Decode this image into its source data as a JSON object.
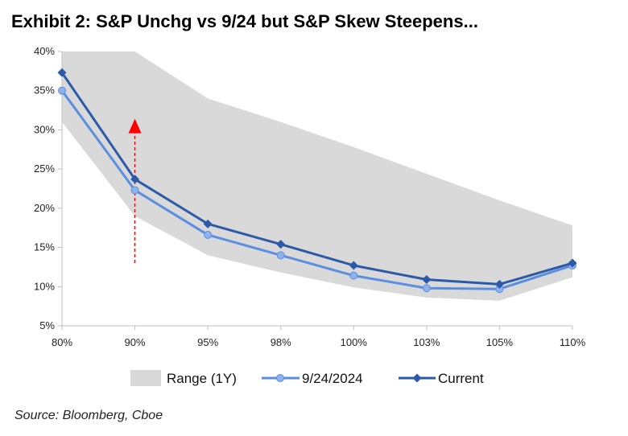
{
  "title": "Exhibit 2: S&P Unchg vs 9/24 but S&P Skew Steepens...",
  "source": "Source: Bloomberg, Cboe",
  "chart_data": {
    "type": "line",
    "categories": [
      "80%",
      "90%",
      "95%",
      "98%",
      "100%",
      "103%",
      "105%",
      "110%"
    ],
    "y_ticks": [
      "5%",
      "10%",
      "15%",
      "20%",
      "25%",
      "30%",
      "35%",
      "40%"
    ],
    "ylim": [
      5,
      40
    ],
    "range": {
      "name": "Range (1Y)",
      "low": [
        31,
        19,
        14,
        11.8,
        9.9,
        8.6,
        8.2,
        11.2
      ],
      "high": [
        40,
        40,
        34,
        31,
        27.8,
        24.4,
        21,
        17.8
      ],
      "color": "#d9d9d9"
    },
    "series": [
      {
        "name": "9/24/2024",
        "values": [
          35,
          22.3,
          16.6,
          14,
          11.4,
          9.8,
          9.7,
          12.7
        ],
        "color": "#5b8ee0",
        "marker": "circle"
      },
      {
        "name": "Current",
        "values": [
          37.3,
          23.7,
          18,
          15.4,
          12.7,
          10.9,
          10.3,
          13
        ],
        "color": "#2c5aa8",
        "marker": "diamond"
      }
    ],
    "annotation": {
      "type": "dashed-arrow",
      "category": "90%",
      "from": 13,
      "to": 31,
      "color": "#ff0000"
    },
    "legend_position": "bottom",
    "grid": false
  }
}
